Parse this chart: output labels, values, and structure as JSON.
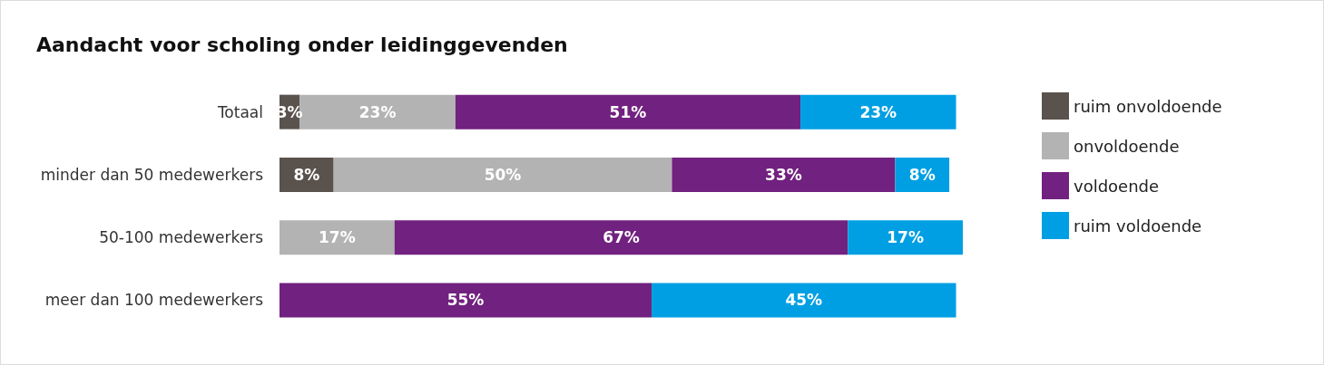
{
  "chart_data": {
    "type": "bar",
    "orientation": "horizontal",
    "stacked": true,
    "title": "Aandacht voor scholing onder leidinggevenden",
    "categories": [
      "Totaal",
      "minder dan 50 medewerkers",
      "50-100 medewerkers",
      "meer dan 100 medewerkers"
    ],
    "series": [
      {
        "name": "ruim onvoldoende",
        "color": "#5a524d",
        "values": [
          3,
          8,
          null,
          null
        ],
        "value_labels": [
          "3%",
          "8%",
          null,
          null
        ]
      },
      {
        "name": "onvoldoende",
        "color": "#b3b3b3",
        "values": [
          23,
          50,
          17,
          null
        ],
        "value_labels": [
          "23%",
          "50%",
          "17%",
          null
        ]
      },
      {
        "name": "voldoende",
        "color": "#71217f",
        "values": [
          51,
          33,
          67,
          55
        ],
        "value_labels": [
          "51%",
          "33%",
          "67%",
          "55%"
        ]
      },
      {
        "name": "ruim voldoende",
        "color": "#009fe3",
        "values": [
          23,
          8,
          17,
          45
        ],
        "value_labels": [
          "23%",
          "8%",
          "17%",
          "45%"
        ]
      }
    ],
    "legend": "right",
    "grid": false,
    "tick_labels": "y"
  }
}
